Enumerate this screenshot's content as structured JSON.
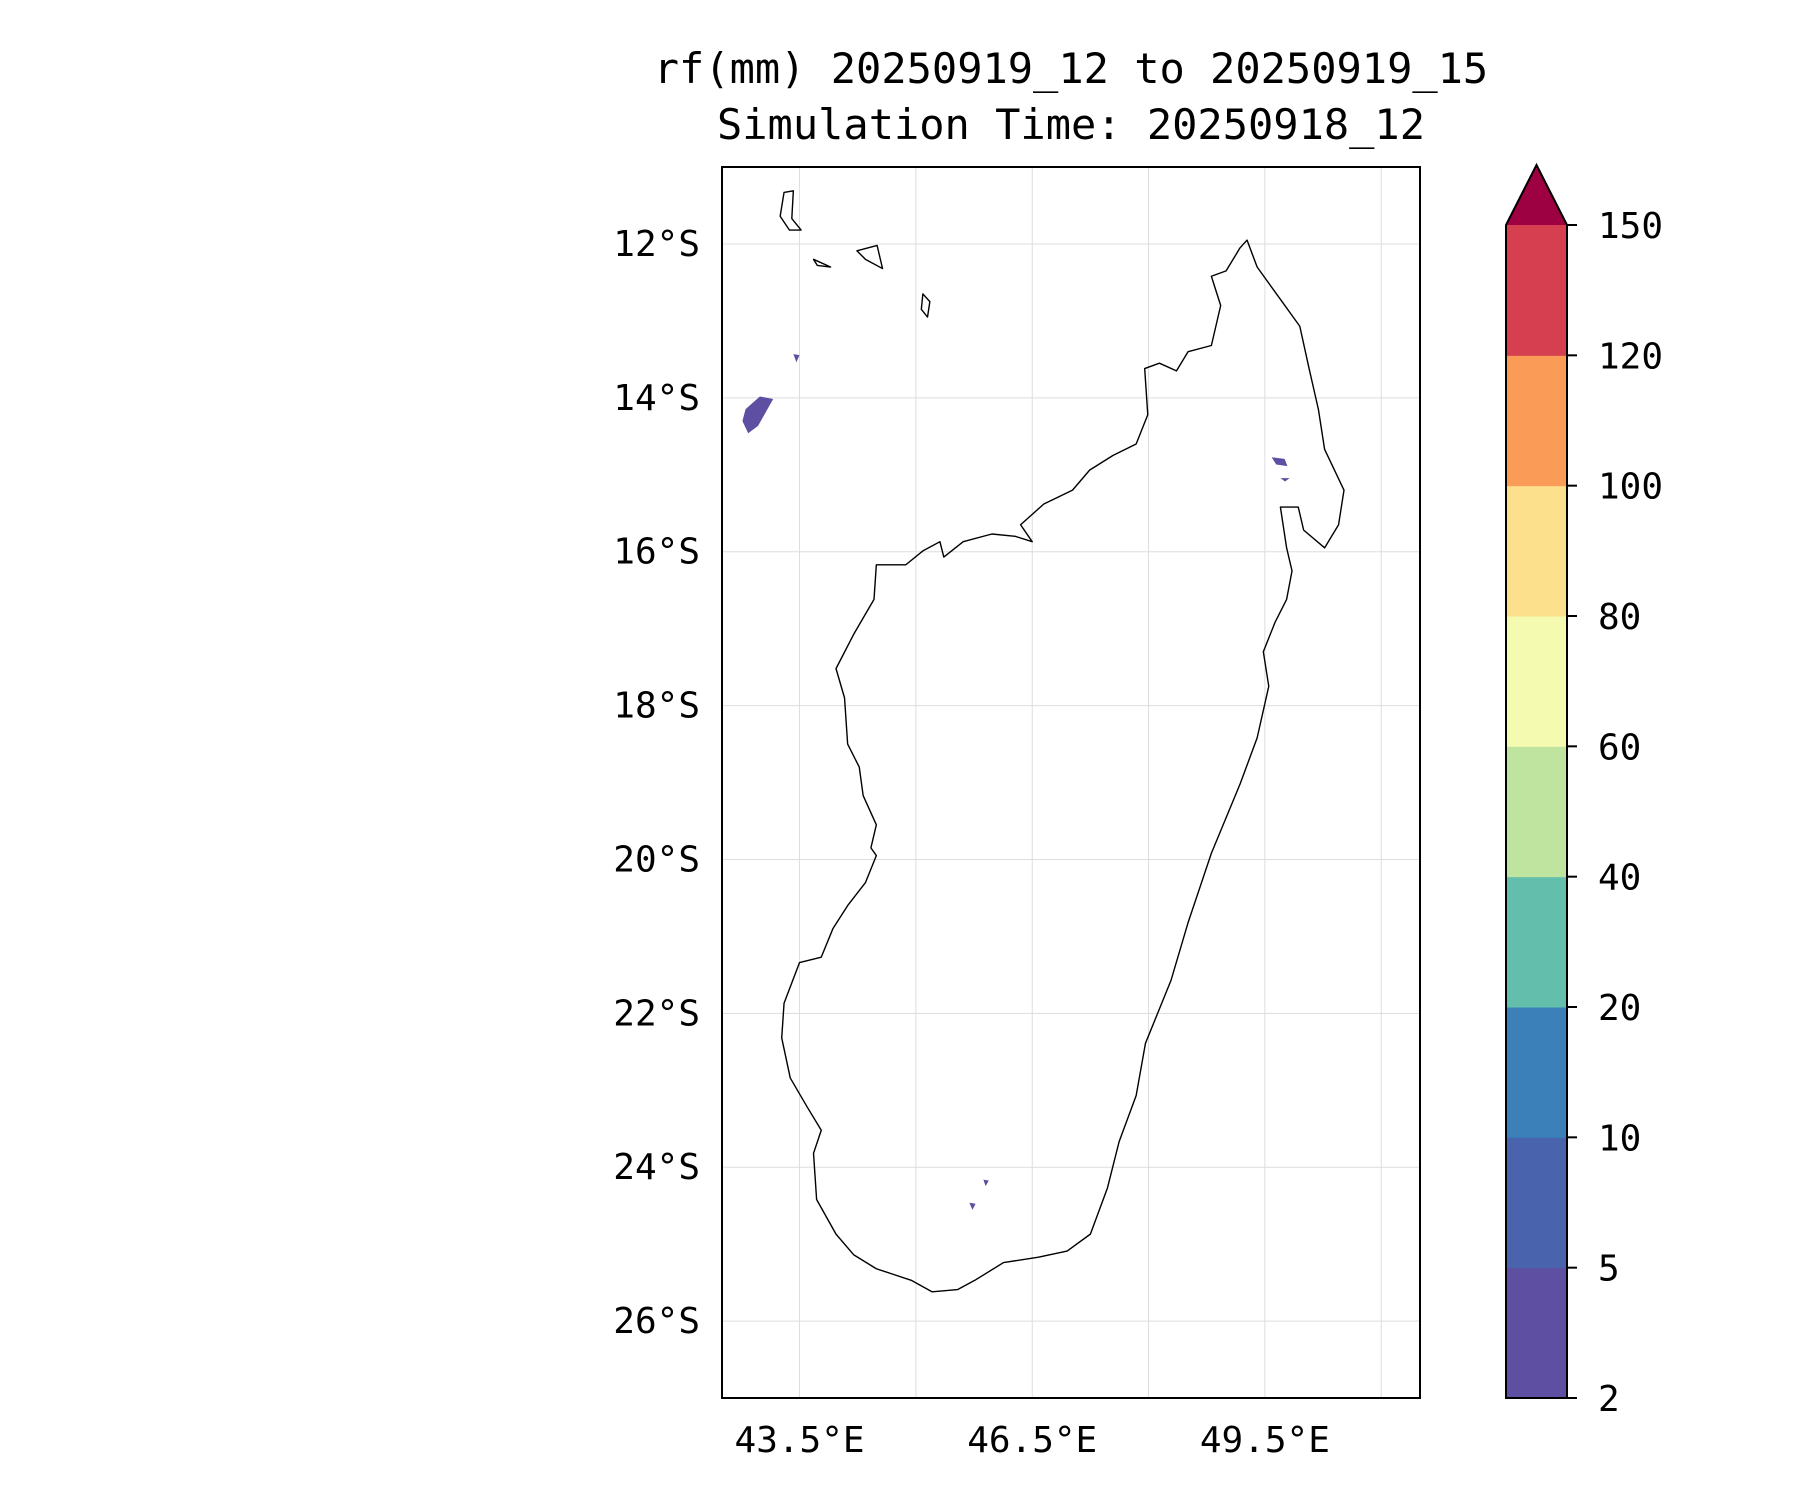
{
  "title": {
    "line1": "rf(mm) 20250919_12 to 20250919_15",
    "line2": "Simulation Time: 20250918_12"
  },
  "map": {
    "extent": {
      "lon": [
        42.5,
        51.5
      ],
      "lat": [
        -27,
        -11
      ]
    },
    "lat_ticks": [
      {
        "value": -12,
        "label": "12°S"
      },
      {
        "value": -14,
        "label": "14°S"
      },
      {
        "value": -16,
        "label": "16°S"
      },
      {
        "value": -18,
        "label": "18°S"
      },
      {
        "value": -20,
        "label": "20°S"
      },
      {
        "value": -22,
        "label": "22°S"
      },
      {
        "value": -24,
        "label": "24°S"
      },
      {
        "value": -26,
        "label": "26°S"
      }
    ],
    "lon_gridlines": [
      43.5,
      45,
      46.5,
      48,
      49.5,
      51
    ],
    "lon_ticks": [
      {
        "value": 43.5,
        "label": "43.5°E"
      },
      {
        "value": 46.5,
        "label": "46.5°E"
      },
      {
        "value": 49.5,
        "label": "49.5°E"
      }
    ],
    "coastlines": [
      [
        [
          49.27,
          -11.95
        ],
        [
          49.4,
          -12.3
        ],
        [
          49.7,
          -12.72
        ],
        [
          49.95,
          -13.07
        ],
        [
          50.07,
          -13.62
        ],
        [
          50.19,
          -14.15
        ],
        [
          50.27,
          -14.67
        ],
        [
          50.52,
          -15.2
        ],
        [
          50.45,
          -15.65
        ],
        [
          50.27,
          -15.95
        ],
        [
          50.0,
          -15.72
        ],
        [
          49.93,
          -15.42
        ],
        [
          49.7,
          -15.42
        ],
        [
          49.78,
          -15.95
        ],
        [
          49.85,
          -16.25
        ],
        [
          49.78,
          -16.62
        ],
        [
          49.63,
          -16.92
        ],
        [
          49.48,
          -17.3
        ],
        [
          49.55,
          -17.75
        ],
        [
          49.4,
          -18.42
        ],
        [
          49.18,
          -19.02
        ],
        [
          48.81,
          -19.92
        ],
        [
          48.51,
          -20.82
        ],
        [
          48.29,
          -21.57
        ],
        [
          47.96,
          -22.39
        ],
        [
          47.84,
          -23.07
        ],
        [
          47.62,
          -23.67
        ],
        [
          47.47,
          -24.27
        ],
        [
          47.25,
          -24.87
        ],
        [
          46.95,
          -25.09
        ],
        [
          46.58,
          -25.17
        ],
        [
          46.13,
          -25.24
        ],
        [
          45.76,
          -25.47
        ],
        [
          45.54,
          -25.59
        ],
        [
          45.21,
          -25.62
        ],
        [
          44.94,
          -25.47
        ],
        [
          44.49,
          -25.32
        ],
        [
          44.2,
          -25.14
        ],
        [
          43.97,
          -24.87
        ],
        [
          43.72,
          -24.42
        ],
        [
          43.68,
          -23.82
        ],
        [
          43.78,
          -23.52
        ],
        [
          43.6,
          -23.22
        ],
        [
          43.38,
          -22.84
        ],
        [
          43.27,
          -22.32
        ],
        [
          43.3,
          -21.87
        ],
        [
          43.5,
          -21.34
        ],
        [
          43.78,
          -21.27
        ],
        [
          43.93,
          -20.9
        ],
        [
          44.12,
          -20.6
        ],
        [
          44.35,
          -20.3
        ],
        [
          44.49,
          -19.95
        ],
        [
          44.42,
          -19.85
        ],
        [
          44.49,
          -19.55
        ],
        [
          44.32,
          -19.17
        ],
        [
          44.27,
          -18.8
        ],
        [
          44.12,
          -18.5
        ],
        [
          44.08,
          -17.9
        ],
        [
          43.97,
          -17.52
        ],
        [
          44.2,
          -17.07
        ],
        [
          44.46,
          -16.62
        ],
        [
          44.49,
          -16.17
        ],
        [
          44.87,
          -16.17
        ],
        [
          45.09,
          -15.99
        ],
        [
          45.31,
          -15.87
        ],
        [
          45.36,
          -16.07
        ],
        [
          45.61,
          -15.87
        ],
        [
          45.98,
          -15.77
        ],
        [
          46.28,
          -15.8
        ],
        [
          46.5,
          -15.87
        ],
        [
          46.35,
          -15.65
        ],
        [
          46.65,
          -15.38
        ],
        [
          47.02,
          -15.2
        ],
        [
          47.24,
          -14.94
        ],
        [
          47.54,
          -14.75
        ],
        [
          47.84,
          -14.6
        ],
        [
          47.99,
          -14.22
        ],
        [
          47.95,
          -13.62
        ],
        [
          48.14,
          -13.55
        ],
        [
          48.36,
          -13.65
        ],
        [
          48.51,
          -13.4
        ],
        [
          48.81,
          -13.32
        ],
        [
          48.93,
          -12.8
        ],
        [
          48.81,
          -12.42
        ],
        [
          49.0,
          -12.35
        ],
        [
          49.18,
          -12.05
        ]
      ],
      [
        [
          43.3,
          -11.33
        ],
        [
          43.42,
          -11.31
        ],
        [
          43.4,
          -11.67
        ],
        [
          43.52,
          -11.82
        ],
        [
          43.37,
          -11.82
        ],
        [
          43.25,
          -11.64
        ]
      ],
      [
        [
          43.68,
          -12.2
        ],
        [
          43.9,
          -12.3
        ],
        [
          43.73,
          -12.28
        ]
      ],
      [
        [
          44.24,
          -12.09
        ],
        [
          44.5,
          -12.02
        ],
        [
          44.57,
          -12.32
        ],
        [
          44.35,
          -12.2
        ]
      ],
      [
        [
          45.09,
          -12.65
        ],
        [
          45.18,
          -12.75
        ],
        [
          45.15,
          -12.95
        ],
        [
          45.07,
          -12.85
        ]
      ]
    ],
    "rain_cells": [
      {
        "level": 0,
        "points": [
          [
            42.99,
            -13.99
          ],
          [
            43.15,
            -14.02
          ],
          [
            42.96,
            -14.36
          ],
          [
            42.84,
            -14.45
          ],
          [
            42.77,
            -14.3
          ],
          [
            42.81,
            -14.15
          ]
        ]
      },
      {
        "level": 0,
        "points": [
          [
            43.43,
            -13.44
          ],
          [
            43.49,
            -13.45
          ],
          [
            43.46,
            -13.52
          ]
        ]
      },
      {
        "level": 0,
        "points": [
          [
            49.6,
            -14.78
          ],
          [
            49.75,
            -14.8
          ],
          [
            49.78,
            -14.88
          ],
          [
            49.65,
            -14.86
          ]
        ]
      },
      {
        "level": 0,
        "points": [
          [
            49.72,
            -15.05
          ],
          [
            49.8,
            -15.05
          ],
          [
            49.76,
            -15.08
          ]
        ]
      },
      {
        "level": 0,
        "points": [
          [
            45.7,
            -24.47
          ],
          [
            45.76,
            -24.48
          ],
          [
            45.73,
            -24.54
          ]
        ]
      },
      {
        "level": 0,
        "points": [
          [
            45.88,
            -24.17
          ],
          [
            45.93,
            -24.18
          ],
          [
            45.9,
            -24.23
          ]
        ]
      }
    ]
  },
  "colorbar": {
    "levels": [
      "2",
      "5",
      "10",
      "20",
      "40",
      "60",
      "80",
      "100",
      "120",
      "150"
    ],
    "colors": [
      "#5e4fa2",
      "#4a63ad",
      "#3b80b9",
      "#63bfab",
      "#bee4a0",
      "#f4fbb0",
      "#fde08b",
      "#fa9c58",
      "#d63f50"
    ],
    "extend_color": "#9e0142"
  }
}
